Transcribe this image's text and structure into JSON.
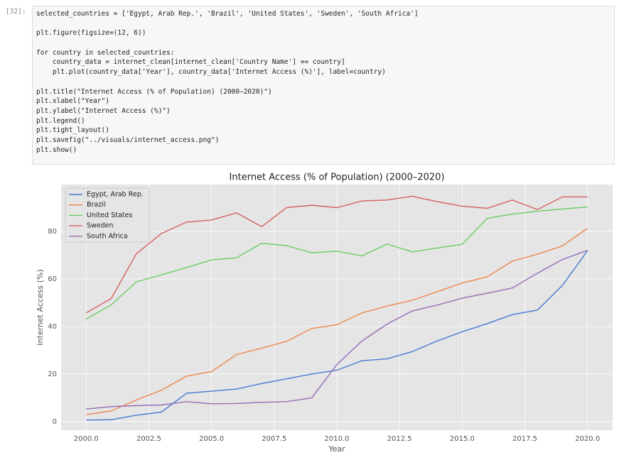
{
  "cell": {
    "prompt": "[32]:",
    "code_blocks": [
      [
        "selected_countries = ['Egypt, Arab Rep.', 'Brazil', 'United States', 'Sweden', 'South Africa']"
      ],
      [
        "plt.figure(figsize=(12, 6))"
      ],
      [
        "for country in selected_countries:",
        "    country_data = internet_clean[internet_clean['Country Name'] == country]",
        "    plt.plot(country_data['Year'], country_data['Internet Access (%)'], label=country)"
      ],
      [
        "plt.title(\"Internet Access (% of Population) (2000–2020)\")",
        "plt.xlabel(\"Year\")",
        "plt.ylabel(\"Internet Access (%)\")",
        "plt.legend()",
        "plt.tight_layout()",
        "plt.savefig(\"../visuals/internet_access.png\")",
        "plt.show()"
      ]
    ]
  },
  "chart_data": {
    "type": "line",
    "title": "Internet Access (% of Population) (2000–2020)",
    "x_label": "Year",
    "y_label": "Internet Access (%)",
    "x": [
      2000,
      2001,
      2002,
      2003,
      2004,
      2005,
      2006,
      2007,
      2008,
      2009,
      2010,
      2011,
      2012,
      2013,
      2014,
      2015,
      2016,
      2017,
      2018,
      2019,
      2020
    ],
    "series": [
      {
        "name": "Egypt, Arab Rep.",
        "color": "#4878d0",
        "values": [
          0.6,
          0.8,
          2.7,
          4,
          11.9,
          12.8,
          13.7,
          16,
          18,
          20,
          21.6,
          25.6,
          26.4,
          29.4,
          33.9,
          37.8,
          41.2,
          45,
          46.9,
          57.3,
          71.9
        ]
      },
      {
        "name": "Brazil",
        "color": "#ee854a",
        "values": [
          2.9,
          4.5,
          9.1,
          13.2,
          19.1,
          21,
          28.2,
          30.9,
          33.8,
          39.2,
          40.7,
          45.7,
          48.6,
          51,
          54.6,
          58.3,
          60.9,
          67.5,
          70.4,
          73.9,
          81.3
        ]
      },
      {
        "name": "United States",
        "color": "#6acc64",
        "values": [
          43.1,
          49.1,
          58.8,
          61.7,
          64.8,
          68,
          68.9,
          75,
          74,
          71,
          71.7,
          69.7,
          74.7,
          71.4,
          73,
          74.6,
          85.5,
          87.3,
          88.5,
          89.4,
          90.3
        ]
      },
      {
        "name": "Sweden",
        "color": "#d65f5f",
        "values": [
          45.7,
          51.8,
          70.6,
          79.1,
          83.9,
          84.8,
          87.8,
          82,
          90,
          91,
          90,
          92.8,
          93.2,
          94.8,
          92.5,
          90.6,
          89.7,
          93.2,
          89.2,
          94.5,
          94.5
        ]
      },
      {
        "name": "South Africa",
        "color": "#956cb4",
        "values": [
          5.3,
          6.3,
          6.7,
          7,
          8.4,
          7.5,
          7.6,
          8.1,
          8.4,
          10,
          24,
          33.9,
          41,
          46.5,
          49,
          51.9,
          54,
          56.2,
          62.4,
          68.2,
          72
        ]
      }
    ],
    "xlim": [
      1999.0,
      2021.0
    ],
    "xticks": [
      {
        "value": 2000,
        "label": "2000.0"
      },
      {
        "value": 2002.5,
        "label": "2002.5"
      },
      {
        "value": 2005,
        "label": "2005.0"
      },
      {
        "value": 2007.5,
        "label": "2007.5"
      },
      {
        "value": 2010,
        "label": "2010.0"
      },
      {
        "value": 2012.5,
        "label": "2012.5"
      },
      {
        "value": 2015,
        "label": "2015.0"
      },
      {
        "value": 2017.5,
        "label": "2017.5"
      },
      {
        "value": 2020,
        "label": "2020.0"
      }
    ],
    "ylim": [
      -3.6,
      99.7
    ],
    "yticks": [
      0,
      20,
      40,
      60,
      80
    ],
    "grid": true,
    "legend": "upper left"
  }
}
